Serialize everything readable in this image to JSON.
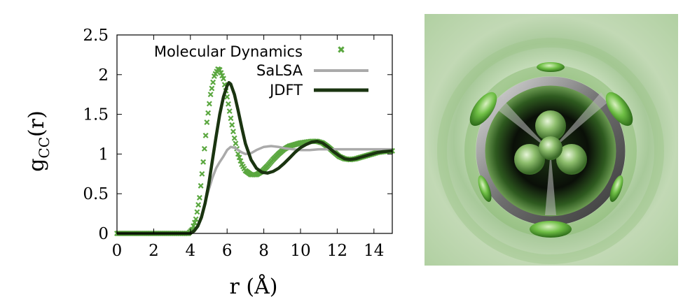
{
  "chart_data": {
    "type": "line",
    "xlabel": "r (Å)",
    "ylabel_main": "g",
    "ylabel_sub": "CC",
    "ylabel_tail": "(r)",
    "xlim": [
      0,
      15
    ],
    "ylim": [
      0,
      2.5
    ],
    "x_ticks": [
      0,
      2,
      4,
      6,
      8,
      10,
      12,
      14
    ],
    "y_ticks": [
      0,
      0.5,
      1,
      1.5,
      2,
      2.5
    ],
    "x_tick_labels": [
      "0",
      "2",
      "4",
      "6",
      "8",
      "10",
      "12",
      "14"
    ],
    "y_tick_labels": [
      "0",
      "0.5",
      "1",
      "1.5",
      "2",
      "2.5"
    ],
    "grid": false,
    "legend_position": "top-right",
    "series": [
      {
        "name": "Molecular Dynamics",
        "style": "points",
        "color": "#5aa73f",
        "x": [
          0,
          1,
          2,
          3,
          3.9,
          4.1,
          4.3,
          4.5,
          4.7,
          4.9,
          5.1,
          5.3,
          5.5,
          5.6,
          5.8,
          6.0,
          6.2,
          6.4,
          6.6,
          6.8,
          7.0,
          7.3,
          7.6,
          7.9,
          8.2,
          8.5,
          8.8,
          9.1,
          9.4,
          9.7,
          10.0,
          10.3,
          10.6,
          10.9,
          11.2,
          11.5,
          11.8,
          12.1,
          12.4,
          12.7,
          13.0,
          13.3,
          13.6,
          13.9,
          14.2,
          14.5,
          15.0
        ],
        "y": [
          0,
          0,
          0,
          0,
          0.0,
          0.05,
          0.18,
          0.45,
          0.9,
          1.4,
          1.75,
          1.98,
          2.07,
          2.06,
          1.95,
          1.72,
          1.45,
          1.2,
          1.0,
          0.87,
          0.79,
          0.74,
          0.74,
          0.78,
          0.85,
          0.93,
          1.0,
          1.06,
          1.1,
          1.12,
          1.14,
          1.15,
          1.16,
          1.16,
          1.14,
          1.09,
          1.03,
          0.97,
          0.94,
          0.93,
          0.94,
          0.96,
          0.98,
          1.0,
          1.02,
          1.03,
          1.04
        ]
      },
      {
        "name": "SaLSA",
        "style": "line",
        "color": "#aaaaaa",
        "x": [
          0,
          1,
          2,
          3,
          4.0,
          4.2,
          4.4,
          4.6,
          4.8,
          5.0,
          5.2,
          5.4,
          5.6,
          5.8,
          6.0,
          6.2,
          6.4,
          6.6,
          6.8,
          7.0,
          7.3,
          7.6,
          8.0,
          8.4,
          8.8,
          9.2,
          9.6,
          10.0,
          10.5,
          11.0,
          12.0,
          13.0,
          14.0,
          15.0
        ],
        "y": [
          0,
          0,
          0,
          0,
          0.0,
          0.03,
          0.1,
          0.22,
          0.38,
          0.55,
          0.7,
          0.82,
          0.9,
          0.97,
          1.05,
          1.09,
          1.08,
          1.05,
          1.02,
          1.0,
          1.01,
          1.05,
          1.09,
          1.1,
          1.09,
          1.07,
          1.06,
          1.05,
          1.05,
          1.06,
          1.06,
          1.06,
          1.06,
          1.06
        ]
      },
      {
        "name": "JDFT",
        "style": "line",
        "color": "#1a3410",
        "x": [
          0,
          1,
          2,
          3,
          4.0,
          4.2,
          4.4,
          4.6,
          4.8,
          5.0,
          5.2,
          5.4,
          5.6,
          5.8,
          6.0,
          6.1,
          6.2,
          6.4,
          6.6,
          6.8,
          7.0,
          7.3,
          7.6,
          7.9,
          8.2,
          8.5,
          8.8,
          9.1,
          9.4,
          9.7,
          10.0,
          10.3,
          10.6,
          10.9,
          11.2,
          11.5,
          11.8,
          12.1,
          12.4,
          12.7,
          13.0,
          13.3,
          13.6,
          13.9,
          14.2,
          14.5,
          15.0
        ],
        "y": [
          0,
          0,
          0,
          0,
          0.0,
          0.03,
          0.09,
          0.2,
          0.38,
          0.62,
          0.92,
          1.22,
          1.5,
          1.72,
          1.86,
          1.9,
          1.88,
          1.75,
          1.55,
          1.33,
          1.13,
          0.93,
          0.82,
          0.77,
          0.76,
          0.78,
          0.82,
          0.88,
          0.95,
          1.02,
          1.08,
          1.12,
          1.15,
          1.16,
          1.14,
          1.09,
          1.03,
          0.98,
          0.94,
          0.93,
          0.94,
          0.96,
          0.98,
          1.0,
          1.02,
          1.03,
          1.04
        ]
      }
    ]
  }
}
